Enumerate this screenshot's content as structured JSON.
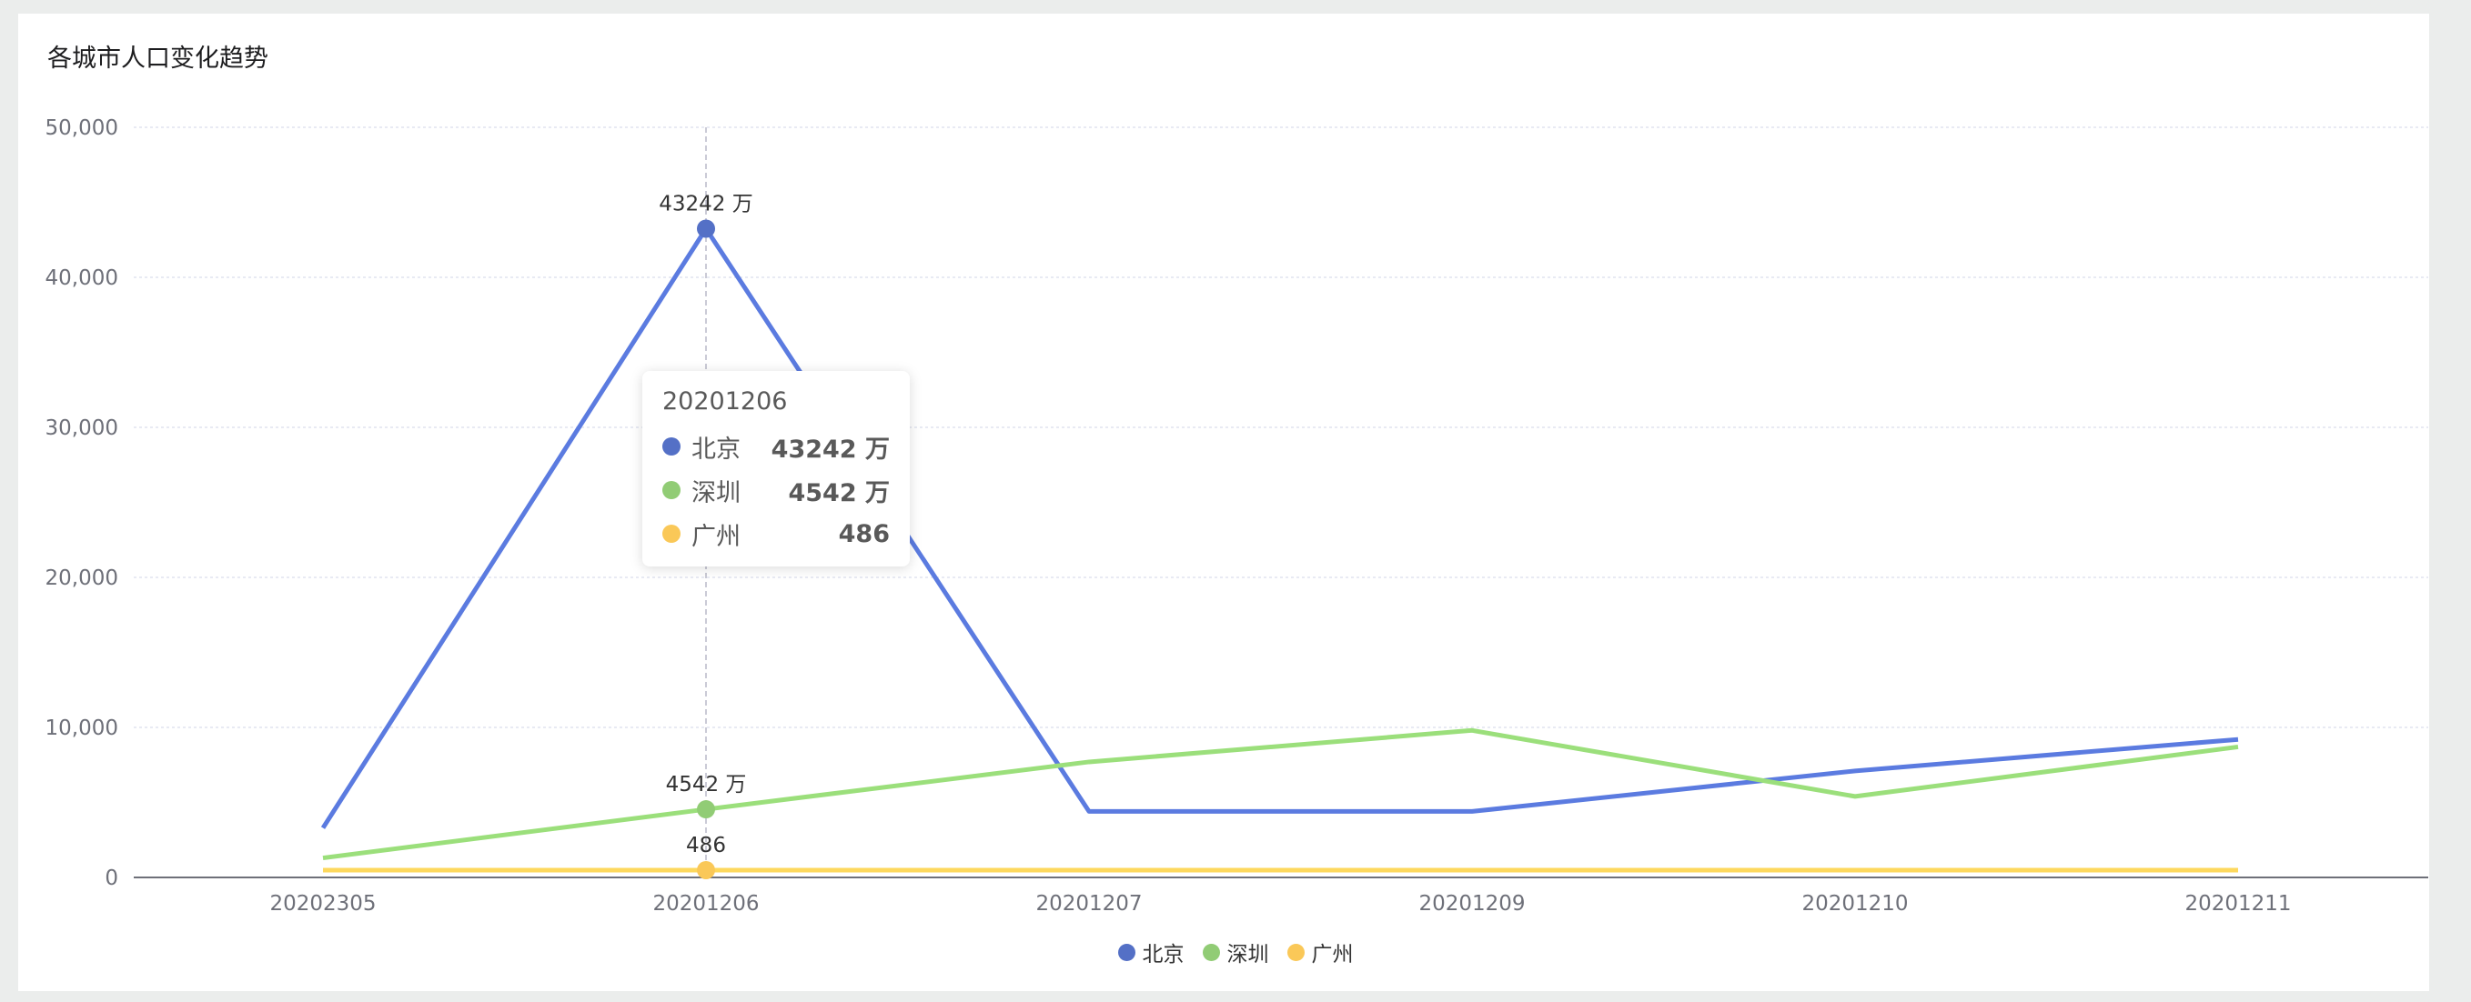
{
  "chart_data": {
    "type": "line",
    "title": "各城市人口变化趋势",
    "categories": [
      "20202305",
      "20201206",
      "20201207",
      "20201209",
      "20201210",
      "20201211"
    ],
    "ylim": [
      0,
      50000
    ],
    "yticks": [
      "0",
      "10,000",
      "20,000",
      "30,000",
      "40,000",
      "50,000"
    ],
    "grid": true,
    "legend_position": "bottom",
    "series": [
      {
        "name": "北京",
        "color": "#5b7be0",
        "values": [
          3300,
          43242,
          4400,
          4400,
          7100,
          9200
        ]
      },
      {
        "name": "深圳",
        "color": "#9bdf7b",
        "values": [
          1300,
          4542,
          7700,
          9800,
          5400,
          8700
        ]
      },
      {
        "name": "广州",
        "color": "#fdd85d",
        "values": [
          486,
          486,
          486,
          486,
          486,
          486
        ]
      }
    ],
    "data_labels": [
      {
        "series": 0,
        "index": 1,
        "text": "43242 万"
      },
      {
        "series": 1,
        "index": 1,
        "text": "4542 万"
      },
      {
        "series": 2,
        "index": 1,
        "text": "486"
      }
    ],
    "tooltip": {
      "title": "20201206",
      "rows": [
        {
          "name": "北京",
          "value": "43242 万",
          "color": "#5470c6"
        },
        {
          "name": "深圳",
          "value": "4542 万",
          "color": "#91cc75"
        },
        {
          "name": "广州",
          "value": "486",
          "color": "#fac858"
        }
      ]
    },
    "legend": [
      {
        "name": "北京",
        "color": "#5470c6"
      },
      {
        "name": "深圳",
        "color": "#91cc75"
      },
      {
        "name": "广州",
        "color": "#fac858"
      }
    ]
  }
}
